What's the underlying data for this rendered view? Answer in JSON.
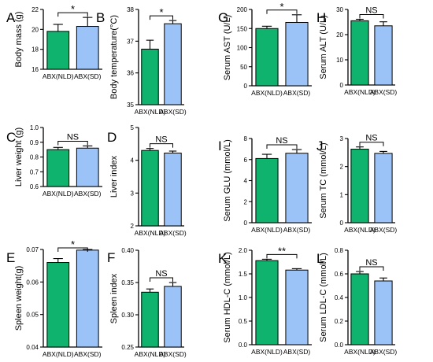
{
  "colors": {
    "nld": "#0fb36d",
    "sd": "#9cc3f7",
    "axis": "#000000"
  },
  "chart_data": [
    {
      "type": "bar",
      "panel_letter": "A",
      "ylabel": "Body mass (g)",
      "categories": [
        "ABX(NLD)",
        "ABX(SD)"
      ],
      "values": [
        19.8,
        20.3
      ],
      "errors": [
        0.7,
        0.9
      ],
      "ylim": [
        16,
        22
      ],
      "yticks": [
        "16",
        "18",
        "20",
        "22"
      ],
      "significance": "*"
    },
    {
      "type": "bar",
      "panel_letter": "B",
      "ylabel": "Body temperature(°C)",
      "categories": [
        "ABX(NLD)",
        "ABX(SD)"
      ],
      "values": [
        36.75,
        37.55
      ],
      "errors": [
        0.28,
        0.1
      ],
      "ylim": [
        35,
        38
      ],
      "yticks": [
        "35",
        "36",
        "37",
        "38"
      ],
      "significance": "*"
    },
    {
      "type": "bar",
      "panel_letter": "C",
      "ylabel": "Liver weight (g)",
      "categories": [
        "ABX(NLD)",
        "ABX(SD)"
      ],
      "values": [
        0.85,
        0.86
      ],
      "errors": [
        0.015,
        0.015
      ],
      "ylim": [
        0.6,
        1.0
      ],
      "yticks": [
        "0.6",
        "0.7",
        "0.8",
        "0.9",
        "1.0"
      ],
      "significance": "NS"
    },
    {
      "type": "bar",
      "panel_letter": "D",
      "ylabel": "Liver index",
      "categories": [
        "ABX(NLD)",
        "ABX(SD)"
      ],
      "values": [
        4.3,
        4.22
      ],
      "errors": [
        0.06,
        0.06
      ],
      "ylim": [
        2,
        5
      ],
      "yticks": [
        "2",
        "3",
        "4",
        "5"
      ],
      "significance": "NS"
    },
    {
      "type": "bar",
      "panel_letter": "E",
      "ylabel": "Spleen weight(g)",
      "categories": [
        "ABX(NLD)",
        "ABX(SD)"
      ],
      "values": [
        0.066,
        0.0698
      ],
      "errors": [
        0.0012,
        0.0012
      ],
      "ylim": [
        0.04,
        0.07
      ],
      "yticks": [
        "0.04",
        "0.05",
        "0.06",
        "0.07"
      ],
      "significance": "*"
    },
    {
      "type": "bar",
      "panel_letter": "F",
      "ylabel": "Spleen index",
      "categories": [
        "ABX(NLD)",
        "ABX(SD)"
      ],
      "values": [
        0.335,
        0.344
      ],
      "errors": [
        0.005,
        0.006
      ],
      "ylim": [
        0.25,
        0.4
      ],
      "yticks": [
        "0.25",
        "0.30",
        "0.35",
        "0.40"
      ],
      "significance": "NS"
    },
    {
      "type": "bar",
      "panel_letter": "G",
      "ylabel": "Serum AST (U/L)",
      "categories": [
        "ABX(NLD)",
        "ABX(SD)"
      ],
      "values": [
        150,
        166
      ],
      "errors": [
        6,
        20
      ],
      "ylim": [
        0,
        200
      ],
      "yticks": [
        "0",
        "50",
        "100",
        "150",
        "200"
      ],
      "significance": "*"
    },
    {
      "type": "bar",
      "panel_letter": "H",
      "ylabel": "Serum ALT (U/L)",
      "categories": [
        "ABX(NLD)",
        "ABX(SD)"
      ],
      "values": [
        25.5,
        23.5
      ],
      "errors": [
        0.6,
        1.6
      ],
      "ylim": [
        0,
        30
      ],
      "yticks": [
        "0",
        "10",
        "20",
        "30"
      ],
      "significance": "NS"
    },
    {
      "type": "bar",
      "panel_letter": "I",
      "ylabel": "Serum GLU (mmol/L)",
      "categories": [
        "ABX(NLD)",
        "ABX(SD)"
      ],
      "values": [
        6.1,
        6.6
      ],
      "errors": [
        0.4,
        0.35
      ],
      "ylim": [
        0,
        8
      ],
      "yticks": [
        "0",
        "2",
        "4",
        "6",
        "8"
      ],
      "significance": "NS"
    },
    {
      "type": "bar",
      "panel_letter": "J",
      "ylabel": "Serum TC (mmol/L)",
      "categories": [
        "ABX(NLD)",
        "ABX(SD)"
      ],
      "values": [
        2.62,
        2.47
      ],
      "errors": [
        0.08,
        0.07
      ],
      "ylim": [
        0,
        3
      ],
      "yticks": [
        "0",
        "1",
        "2",
        "3"
      ],
      "significance": "NS"
    },
    {
      "type": "bar",
      "panel_letter": "K",
      "ylabel": "Serum HDL-C (mmol/L)",
      "categories": [
        "ABX(NLD)",
        "ABX(SD)"
      ],
      "values": [
        1.78,
        1.58
      ],
      "errors": [
        0.03,
        0.03
      ],
      "ylim": [
        0,
        2.0
      ],
      "yticks": [
        "0.0",
        "0.5",
        "1.0",
        "1.5",
        "2.0"
      ],
      "significance": "**"
    },
    {
      "type": "bar",
      "panel_letter": "L",
      "ylabel": "Serum LDL-C (mmol/L)",
      "categories": [
        "ABX(NLD)",
        "ABX(SD)"
      ],
      "values": [
        0.6,
        0.54
      ],
      "errors": [
        0.02,
        0.025
      ],
      "ylim": [
        0,
        0.8
      ],
      "yticks": [
        "0.0",
        "0.2",
        "0.4",
        "0.6",
        "0.8"
      ],
      "significance": "NS"
    }
  ]
}
